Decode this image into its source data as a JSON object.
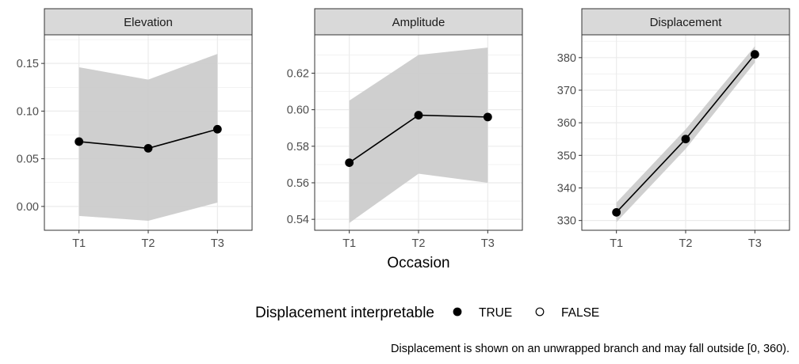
{
  "chart_data": {
    "type": "line",
    "layout": "faceted",
    "x_label": "Occasion",
    "categories": [
      "T1",
      "T2",
      "T3"
    ],
    "panels": [
      {
        "title": "Elevation",
        "ylim": [
          -0.025,
          0.18
        ],
        "y_ticks": [
          0.0,
          0.05,
          0.1,
          0.15
        ],
        "y_tick_labels": [
          "0.00",
          "0.05",
          "0.10",
          "0.15"
        ],
        "values": [
          0.068,
          0.061,
          0.081
        ],
        "ribbon_lower": [
          -0.01,
          -0.015,
          0.004
        ],
        "ribbon_upper": [
          0.146,
          0.133,
          0.16
        ],
        "interpretable": [
          true,
          true,
          true
        ]
      },
      {
        "title": "Amplitude",
        "ylim": [
          0.534,
          0.641
        ],
        "y_ticks": [
          0.54,
          0.56,
          0.58,
          0.6,
          0.62
        ],
        "y_tick_labels": [
          "0.54",
          "0.56",
          "0.58",
          "0.60",
          "0.62"
        ],
        "values": [
          0.571,
          0.597,
          0.596
        ],
        "ribbon_lower": [
          0.538,
          0.565,
          0.56
        ],
        "ribbon_upper": [
          0.605,
          0.63,
          0.634
        ],
        "interpretable": [
          true,
          true,
          true
        ]
      },
      {
        "title": "Displacement",
        "ylim": [
          327,
          387
        ],
        "y_ticks": [
          330,
          340,
          350,
          360,
          370,
          380
        ],
        "y_tick_labels": [
          "330",
          "340",
          "350",
          "360",
          "370",
          "380"
        ],
        "values": [
          332.5,
          355.0,
          381.0
        ],
        "ribbon_lower": [
          329.5,
          352.0,
          378.5
        ],
        "ribbon_upper": [
          335.5,
          358.0,
          383.5
        ],
        "interpretable": [
          true,
          true,
          true
        ]
      }
    ],
    "legend": {
      "title": "Displacement interpretable",
      "position": "bottom",
      "entries": [
        {
          "label": "TRUE",
          "marker": "filled-circle"
        },
        {
          "label": "FALSE",
          "marker": "open-circle"
        }
      ]
    },
    "caption": "Displacement is shown on an unwrapped branch and may fall outside [0, 360).",
    "grid": true,
    "colors": {
      "line": "#000000",
      "ribbon": "#cccccc",
      "strip_fill": "#d9d9d9",
      "grid": "#ebebeb",
      "panel_border": "#333333"
    }
  }
}
